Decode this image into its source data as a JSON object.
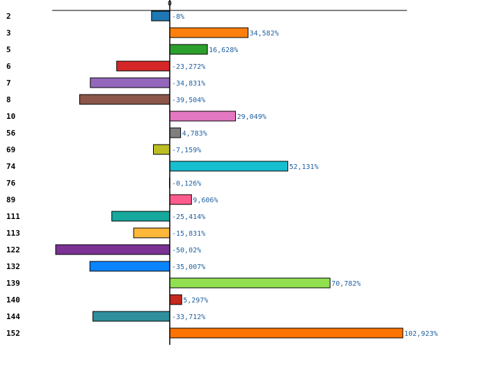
{
  "chart_data": {
    "type": "bar",
    "orientation": "horizontal",
    "title": "",
    "xlabel": "",
    "ylabel": "",
    "xlim": [
      -50.02,
      102.923
    ],
    "zero_tick_label": "0",
    "grid": false,
    "legend": "none",
    "categories": [
      "2",
      "3",
      "5",
      "6",
      "7",
      "8",
      "10",
      "56",
      "69",
      "74",
      "76",
      "89",
      "111",
      "113",
      "122",
      "132",
      "139",
      "140",
      "144",
      "152"
    ],
    "values": [
      -8,
      34.582,
      16.628,
      -23.272,
      -34.831,
      -39.504,
      29.049,
      4.783,
      -7.159,
      52.131,
      -0.126,
      9.606,
      -25.414,
      -15.831,
      -50.02,
      -35.007,
      70.782,
      5.297,
      -33.712,
      102.923
    ],
    "value_labels": [
      "-8%",
      "34,582%",
      "16,628%",
      "-23,272%",
      "-34,831%",
      "-39,504%",
      "29,049%",
      "4,783%",
      "-7,159%",
      "52,131%",
      "-0,126%",
      "9,606%",
      "-25,414%",
      "-15,831%",
      "-50,02%",
      "-35,007%",
      "70,782%",
      "5,297%",
      "-33,712%",
      "102,923%"
    ],
    "colors": [
      "#1f77b4",
      "#ff7f0e",
      "#2ca02c",
      "#d62728",
      "#9467bd",
      "#8c564b",
      "#e377c2",
      "#7f7f7f",
      "#bcbd22",
      "#17becf",
      "#1a55ff",
      "#ff5c8d",
      "#17a89e",
      "#fdb83a",
      "#7b3294",
      "#0a84ff",
      "#90e050",
      "#c8281e",
      "#2f8f9d",
      "#ff7400"
    ]
  }
}
